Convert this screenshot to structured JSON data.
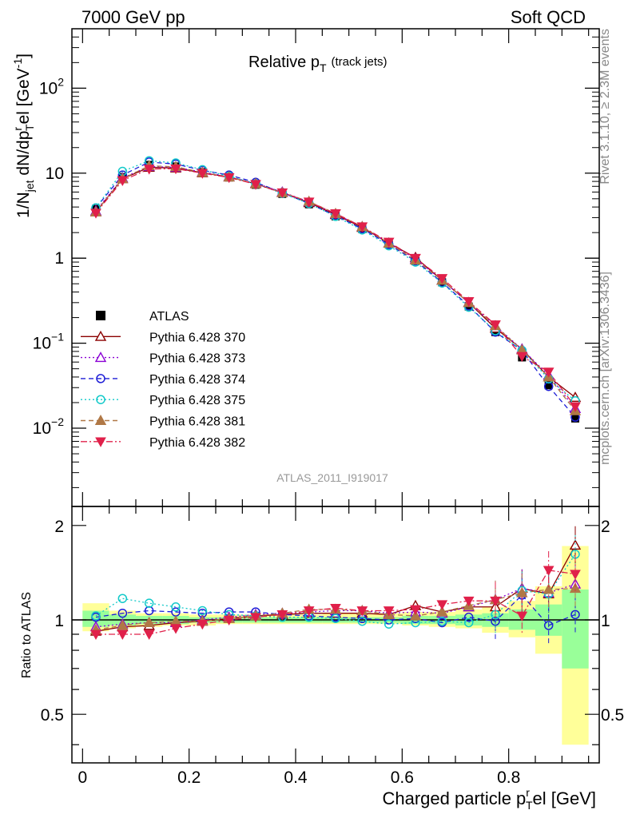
{
  "header": {
    "left": "7000 GeV pp",
    "right": "Soft QCD"
  },
  "side_texts": {
    "rivet": "Rivet 3.1.10, ≥ 2.3M events",
    "mcplots": "mcplots.cern.ch [arXiv:1306.3436]"
  },
  "chart_data": [
    {
      "type": "scatter",
      "title": "Relative p_T (track jets)",
      "title_main": "Relative p",
      "title_sub": "T",
      "title_note": "(track jets)",
      "ylabel": "1/N_jet dN/dp_T^rel [GeV^-1]",
      "ylabel_parts": {
        "a": "1/N",
        "a_sub": "jet",
        "b": " dN/dp",
        "b_sup": "r",
        "b_sub": "T",
        "c": "el [GeV",
        "c_sup": "-1",
        "d": "]"
      },
      "xlim": [
        -0.02,
        0.97
      ],
      "ylim": [
        0.0012,
        500
      ],
      "yscale": "log",
      "yticks": [
        {
          "value": 0.01,
          "base": "10",
          "exp": "−2"
        },
        {
          "value": 0.1,
          "base": "10",
          "exp": "−1"
        },
        {
          "value": 1,
          "base": "1",
          "exp": ""
        },
        {
          "value": 10,
          "base": "10",
          "exp": ""
        },
        {
          "value": 100,
          "base": "10",
          "exp": "2"
        }
      ],
      "watermark": "ATLAS_2011_I919017",
      "legend_position": "middle-left",
      "x": [
        0.025,
        0.075,
        0.125,
        0.175,
        0.225,
        0.275,
        0.325,
        0.375,
        0.425,
        0.475,
        0.525,
        0.575,
        0.625,
        0.675,
        0.725,
        0.775,
        0.825,
        0.875,
        0.925
      ],
      "data": {
        "name": "ATLAS",
        "values": [
          3.8,
          9.0,
          12.5,
          12.0,
          10.3,
          8.9,
          7.3,
          5.7,
          4.3,
          3.1,
          2.2,
          1.45,
          0.92,
          0.52,
          0.27,
          0.135,
          0.068,
          0.032,
          0.013
        ]
      },
      "series": [
        {
          "name": "Pythia 6.428 370",
          "color": "#8b0000",
          "marker": "triangle-open",
          "dash": "solid",
          "values": [
            3.5,
            8.6,
            11.7,
            11.5,
            10.1,
            9.0,
            7.5,
            5.9,
            4.5,
            3.25,
            2.3,
            1.5,
            1.02,
            0.55,
            0.3,
            0.15,
            0.085,
            0.04,
            0.023
          ]
        },
        {
          "name": "Pythia 6.428 373",
          "color": "#8a00d4",
          "marker": "triangle-open",
          "dash": "dot",
          "values": [
            3.6,
            8.8,
            12.0,
            11.7,
            10.3,
            9.1,
            7.6,
            6.0,
            4.6,
            3.3,
            2.35,
            1.5,
            0.98,
            0.55,
            0.3,
            0.16,
            0.085,
            0.042,
            0.017
          ]
        },
        {
          "name": "Pythia 6.428 374",
          "color": "#1c1cd6",
          "marker": "circle-open",
          "dash": "dash",
          "values": [
            3.9,
            9.5,
            13.5,
            12.8,
            10.8,
            9.5,
            7.8,
            5.9,
            4.4,
            3.15,
            2.22,
            1.45,
            0.93,
            0.52,
            0.275,
            0.135,
            0.082,
            0.031,
            0.0135
          ]
        },
        {
          "name": "Pythia 6.428 375",
          "color": "#11c9c9",
          "marker": "circle-open",
          "dash": "dot",
          "values": [
            3.9,
            10.5,
            14.0,
            13.2,
            11.0,
            9.2,
            7.5,
            5.8,
            4.4,
            3.1,
            2.15,
            1.4,
            0.9,
            0.51,
            0.265,
            0.14,
            0.082,
            0.038,
            0.021
          ]
        },
        {
          "name": "Pythia 6.428 381",
          "color": "#b07846",
          "marker": "triangle-filled",
          "dash": "dash",
          "values": [
            3.5,
            8.6,
            12.2,
            11.9,
            10.2,
            9.0,
            7.5,
            5.9,
            4.65,
            3.35,
            2.35,
            1.5,
            0.95,
            0.55,
            0.3,
            0.16,
            0.083,
            0.04,
            0.016
          ]
        },
        {
          "name": "Pythia 6.428 382",
          "color": "#e0204a",
          "marker": "triangle-down-filled",
          "dash": "dashdot",
          "values": [
            3.4,
            8.2,
            11.2,
            11.3,
            10.0,
            8.9,
            7.4,
            5.9,
            4.6,
            3.35,
            2.35,
            1.55,
            1.0,
            0.58,
            0.31,
            0.165,
            0.07,
            0.046,
            0.018
          ]
        }
      ]
    },
    {
      "type": "scatter",
      "title": "",
      "xlabel": "Charged particle p_T^rel [GeV]",
      "xlabel_parts": {
        "a": "Charged particle p",
        "sup": "r",
        "sub": "T",
        "b": "el [GeV]"
      },
      "ylabel": "Ratio to ATLAS",
      "xlim": [
        -0.02,
        0.97
      ],
      "ylim": [
        0.35,
        2.3
      ],
      "yscale": "log",
      "yticks": [
        0.5,
        1,
        2
      ],
      "xticks": [
        0,
        0.2,
        0.4,
        0.6,
        0.8
      ],
      "band_edges": [
        0,
        0.05,
        0.1,
        0.15,
        0.2,
        0.25,
        0.3,
        0.35,
        0.4,
        0.45,
        0.5,
        0.55,
        0.6,
        0.65,
        0.7,
        0.75,
        0.8,
        0.85,
        0.9,
        0.95
      ],
      "band_green": [
        [
          0.95,
          1.07
        ],
        [
          0.96,
          1.04
        ],
        [
          0.97,
          1.03
        ],
        [
          0.97,
          1.03
        ],
        [
          0.98,
          1.02
        ],
        [
          0.98,
          1.02
        ],
        [
          0.98,
          1.02
        ],
        [
          0.98,
          1.02
        ],
        [
          0.98,
          1.02
        ],
        [
          0.98,
          1.02
        ],
        [
          0.98,
          1.02
        ],
        [
          0.98,
          1.02
        ],
        [
          0.97,
          1.03
        ],
        [
          0.97,
          1.03
        ],
        [
          0.96,
          1.04
        ],
        [
          0.95,
          1.05
        ],
        [
          0.93,
          1.08
        ],
        [
          0.89,
          1.12
        ],
        [
          0.7,
          1.25
        ]
      ],
      "band_yellow": [
        [
          0.92,
          1.13
        ],
        [
          0.94,
          1.07
        ],
        [
          0.95,
          1.05
        ],
        [
          0.96,
          1.05
        ],
        [
          0.96,
          1.04
        ],
        [
          0.97,
          1.04
        ],
        [
          0.97,
          1.04
        ],
        [
          0.97,
          1.04
        ],
        [
          0.97,
          1.04
        ],
        [
          0.97,
          1.05
        ],
        [
          0.97,
          1.05
        ],
        [
          0.97,
          1.05
        ],
        [
          0.96,
          1.06
        ],
        [
          0.95,
          1.06
        ],
        [
          0.94,
          1.08
        ],
        [
          0.91,
          1.1
        ],
        [
          0.88,
          1.15
        ],
        [
          0.78,
          1.28
        ],
        [
          0.4,
          1.72
        ]
      ],
      "series": [
        {
          "name": "Pythia 6.428 370",
          "values": [
            0.92,
            0.95,
            0.96,
            0.98,
            0.99,
            1.01,
            1.03,
            1.04,
            1.05,
            1.05,
            1.05,
            1.04,
            1.11,
            1.06,
            1.1,
            1.1,
            1.26,
            1.21,
            1.73
          ]
        },
        {
          "name": "Pythia 6.428 373",
          "values": [
            0.95,
            0.97,
            0.98,
            0.98,
            1.0,
            1.02,
            1.04,
            1.05,
            1.06,
            1.07,
            1.07,
            1.05,
            1.06,
            1.05,
            1.1,
            1.16,
            1.26,
            1.22,
            1.3
          ]
        },
        {
          "name": "Pythia 6.428 374",
          "values": [
            1.02,
            1.05,
            1.07,
            1.06,
            1.05,
            1.06,
            1.06,
            1.04,
            1.03,
            1.02,
            1.01,
            1.0,
            1.01,
            0.98,
            1.02,
            0.99,
            1.2,
            0.96,
            1.04
          ]
        },
        {
          "name": "Pythia 6.428 375",
          "values": [
            1.03,
            1.17,
            1.13,
            1.1,
            1.07,
            1.04,
            1.03,
            1.02,
            1.02,
            1.01,
            0.99,
            0.97,
            0.98,
            0.99,
            0.98,
            1.04,
            1.24,
            1.21,
            1.62
          ]
        },
        {
          "name": "Pythia 6.428 381",
          "values": [
            0.93,
            0.96,
            0.98,
            0.99,
            0.99,
            1.01,
            1.03,
            1.05,
            1.08,
            1.08,
            1.07,
            1.04,
            1.03,
            1.06,
            1.11,
            1.16,
            1.22,
            1.25,
            1.26
          ]
        },
        {
          "name": "Pythia 6.428 382",
          "values": [
            0.9,
            0.9,
            0.9,
            0.94,
            0.97,
            1.0,
            1.02,
            1.04,
            1.07,
            1.09,
            1.07,
            1.07,
            1.08,
            1.12,
            1.15,
            1.15,
            1.03,
            1.44,
            1.4
          ]
        }
      ]
    }
  ]
}
